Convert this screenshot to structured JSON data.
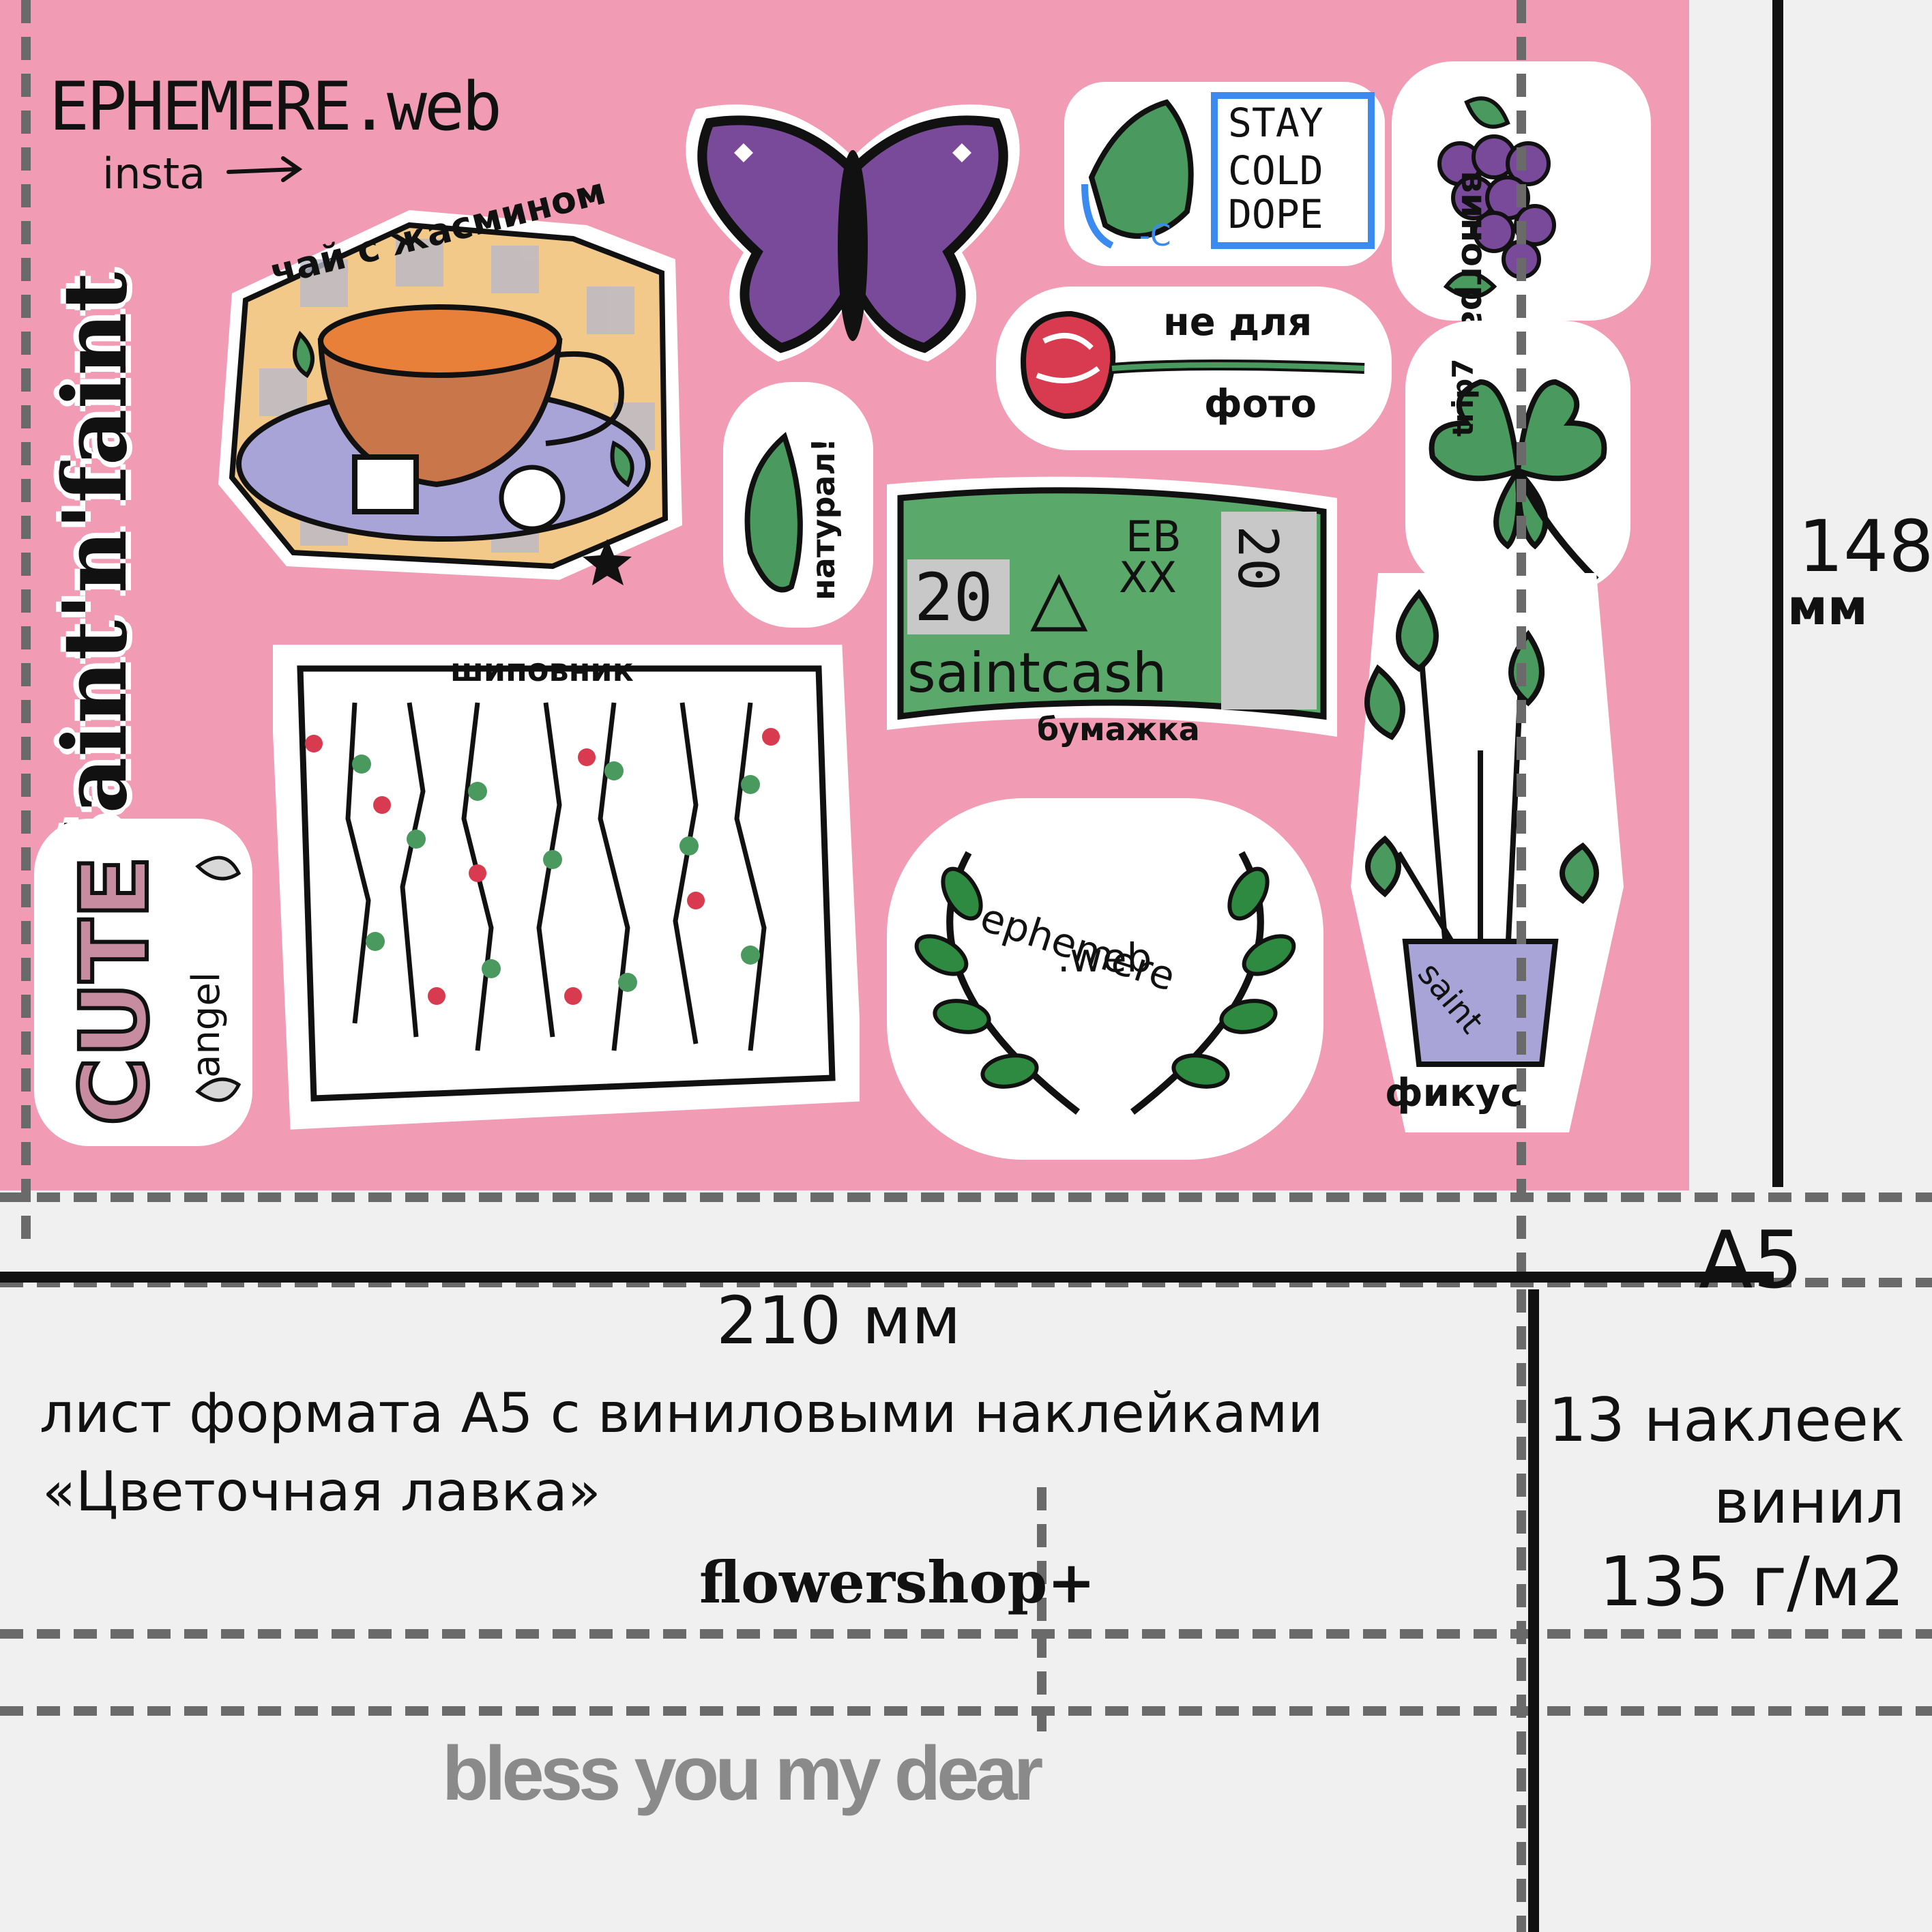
{
  "colors": {
    "sheet_pink": "#f19cb4",
    "background": "#f0f0f0",
    "dash_gray": "#6a6a6a",
    "line_black": "#111111",
    "leaf_green": "#4a9a60",
    "money_green": "#5aa86a",
    "butterfly_purple": "#7a4a9a",
    "lavender": "#a8a4d8",
    "berry_red": "#d83a50"
  },
  "brand": {
    "handle": "EPHEMERE.web",
    "insta": "insta"
  },
  "stickers": {
    "tea": {
      "label": "чай с жасмином"
    },
    "saint_n_faint": {
      "label": "Saint'n'faint"
    },
    "butterfly": {
      "icon": "butterfly-icon"
    },
    "stay_cold": {
      "line1": "STAY",
      "line2": "COLD",
      "line3": "DOPE",
      "tag": "-C"
    },
    "grapes": {
      "label": "виноград"
    },
    "rose": {
      "line1": "не для",
      "line2": "фото"
    },
    "natural_leaf": {
      "label": "натурал!"
    },
    "clover": {
      "label": "trip7"
    },
    "banknote": {
      "denom_left": "20",
      "code_top": "EB",
      "code_bottom": "XX",
      "denom_right": "20",
      "brand": "saintcash",
      "caption": "бумажка"
    },
    "rosehip": {
      "label": "шиповник"
    },
    "laurel": {
      "line1": "ephemere",
      "line2": ".web"
    },
    "ficus": {
      "pot_label": "saint",
      "caption": "фикус"
    },
    "cute": {
      "word": "CUTE",
      "sub": "angel"
    }
  },
  "dimensions": {
    "height_value": "148",
    "height_unit": "мм",
    "width_label": "210 мм",
    "format": "A5"
  },
  "description": {
    "line1": "лист формата А5 с виниловыми наклейками",
    "line2": "«Цветочная лавка»",
    "brand": "flowershop+"
  },
  "specs": {
    "count": "13 наклеек",
    "material": "винил",
    "density": "135 г/м2"
  },
  "footer": {
    "slogan": "bless you my dear"
  }
}
